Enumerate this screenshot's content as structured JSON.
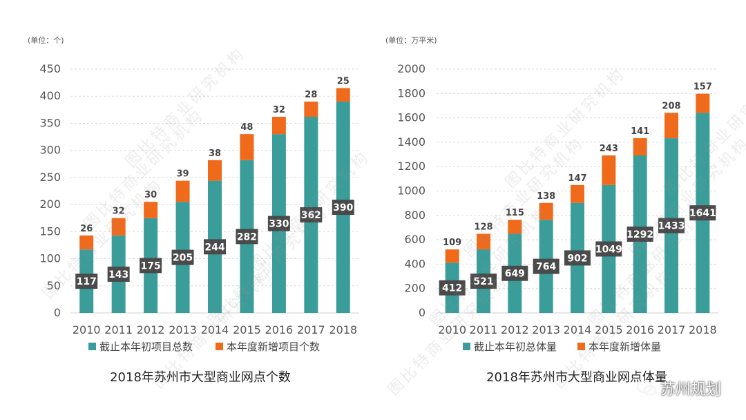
{
  "colors": {
    "base": "#3a9d99",
    "new": "#f06a1c",
    "label_box": "#4a4a4a",
    "label_text": "#ffffff",
    "grid": "#d9d9d9",
    "axis_text": "#555555"
  },
  "watermark_text": "图比特商业研究机构",
  "credit": {
    "icon": "wechat-icon",
    "text": "苏州规划"
  },
  "chart_data": [
    {
      "type": "bar",
      "stacked": true,
      "title": "2018年苏州市大型商业网点个数",
      "unit_label": "(单位：个)",
      "categories": [
        "2010",
        "2011",
        "2012",
        "2013",
        "2014",
        "2015",
        "2016",
        "2017",
        "2018"
      ],
      "series": [
        {
          "name": "截止本年初项目总数",
          "values": [
            117,
            143,
            175,
            205,
            244,
            282,
            330,
            362,
            390
          ]
        },
        {
          "name": "本年度新增项目个数",
          "values": [
            26,
            32,
            30,
            39,
            38,
            48,
            32,
            28,
            25
          ]
        }
      ],
      "ylim": [
        0,
        450
      ],
      "yticks": [
        0,
        50,
        100,
        150,
        200,
        250,
        300,
        350,
        400,
        450
      ],
      "grid": true,
      "legend": "bottom"
    },
    {
      "type": "bar",
      "stacked": true,
      "title": "2018年苏州市大型商业网点体量",
      "unit_label": "(单位：万平米)",
      "categories": [
        "2010",
        "2011",
        "2012",
        "2013",
        "2014",
        "2015",
        "2016",
        "2017",
        "2018"
      ],
      "series": [
        {
          "name": "截止本年初总体量",
          "values": [
            412,
            521,
            649,
            764,
            902,
            1049,
            1292,
            1433,
            1641
          ]
        },
        {
          "name": "本年度新增体量",
          "values": [
            109,
            128,
            115,
            138,
            147,
            243,
            141,
            208,
            157
          ]
        }
      ],
      "ylim": [
        0,
        2000
      ],
      "yticks": [
        0,
        200,
        400,
        600,
        800,
        1000,
        1200,
        1400,
        1600,
        1800,
        2000
      ],
      "grid": true,
      "legend": "bottom"
    }
  ]
}
